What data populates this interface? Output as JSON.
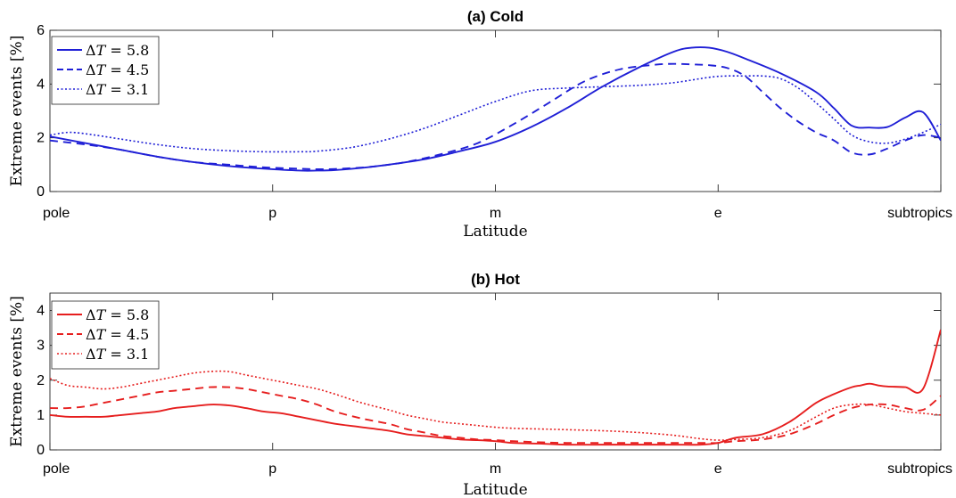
{
  "chart_data": [
    {
      "type": "line",
      "title": "(a) Cold",
      "xlabel": "Latitude",
      "ylabel": "Extreme events [%]",
      "xlim": [
        0,
        100
      ],
      "ylim": [
        0,
        6
      ],
      "yticks": [
        0,
        2,
        4,
        6
      ],
      "xticks": [
        {
          "x": 0,
          "label": "pole"
        },
        {
          "x": 25,
          "label": "p"
        },
        {
          "x": 50,
          "label": "m"
        },
        {
          "x": 75,
          "label": "e"
        },
        {
          "x": 100,
          "label": "subtropics"
        }
      ],
      "color": "#1f1fd6",
      "legend_position": "top-left",
      "series": [
        {
          "name": "ΔT = 5.8",
          "style": "solid",
          "x": [
            0,
            4,
            8,
            12,
            16,
            20,
            24,
            28,
            30,
            32,
            35,
            38,
            42,
            46,
            50,
            54,
            58,
            62,
            66,
            70,
            72,
            74,
            76,
            78,
            82,
            86,
            88,
            90,
            92,
            94,
            96,
            98,
            100
          ],
          "y": [
            2.05,
            1.8,
            1.55,
            1.3,
            1.1,
            0.95,
            0.85,
            0.78,
            0.78,
            0.8,
            0.88,
            1.0,
            1.2,
            1.5,
            1.85,
            2.4,
            3.1,
            3.9,
            4.6,
            5.2,
            5.35,
            5.35,
            5.2,
            4.95,
            4.4,
            3.7,
            3.1,
            2.45,
            2.38,
            2.4,
            2.75,
            2.95,
            1.9
          ]
        },
        {
          "name": "ΔT = 4.5",
          "style": "dashed",
          "x": [
            0,
            4,
            8,
            12,
            16,
            20,
            24,
            28,
            30,
            32,
            36,
            40,
            44,
            48,
            52,
            56,
            60,
            64,
            68,
            70,
            72,
            74,
            76,
            78,
            80,
            82,
            84,
            86,
            88,
            90,
            92,
            94,
            96,
            98,
            100
          ],
          "y": [
            1.9,
            1.75,
            1.55,
            1.3,
            1.1,
            1.0,
            0.9,
            0.85,
            0.83,
            0.84,
            0.92,
            1.1,
            1.4,
            1.8,
            2.5,
            3.3,
            4.1,
            4.55,
            4.72,
            4.75,
            4.73,
            4.7,
            4.6,
            4.3,
            3.7,
            3.1,
            2.6,
            2.2,
            1.9,
            1.45,
            1.38,
            1.6,
            1.9,
            2.1,
            2.0
          ]
        },
        {
          "name": "ΔT = 3.1",
          "style": "dotted",
          "x": [
            0,
            2,
            4,
            8,
            12,
            16,
            20,
            24,
            28,
            30,
            34,
            38,
            42,
            46,
            50,
            54,
            58,
            62,
            66,
            70,
            74,
            76,
            78,
            80,
            82,
            84,
            86,
            88,
            90,
            92,
            94,
            96,
            98,
            100
          ],
          "y": [
            2.1,
            2.2,
            2.15,
            1.95,
            1.75,
            1.6,
            1.52,
            1.48,
            1.48,
            1.5,
            1.65,
            1.95,
            2.35,
            2.85,
            3.35,
            3.75,
            3.85,
            3.9,
            3.95,
            4.05,
            4.25,
            4.3,
            4.3,
            4.3,
            4.2,
            3.85,
            3.3,
            2.7,
            2.1,
            1.85,
            1.8,
            1.95,
            2.2,
            2.5
          ]
        }
      ]
    },
    {
      "type": "line",
      "title": "(b) Hot",
      "xlabel": "Latitude",
      "ylabel": "Extreme events [%]",
      "xlim": [
        0,
        100
      ],
      "ylim": [
        0,
        4.5
      ],
      "yticks": [
        0,
        1,
        2,
        3,
        4
      ],
      "xticks": [
        {
          "x": 0,
          "label": "pole"
        },
        {
          "x": 25,
          "label": "p"
        },
        {
          "x": 50,
          "label": "m"
        },
        {
          "x": 75,
          "label": "e"
        },
        {
          "x": 100,
          "label": "subtropics"
        }
      ],
      "color": "#e61e1e",
      "legend_position": "top-left",
      "series": [
        {
          "name": "ΔT = 5.8",
          "style": "solid",
          "x": [
            0,
            2,
            4,
            6,
            8,
            10,
            12,
            14,
            16,
            18,
            20,
            22,
            24,
            26,
            28,
            30,
            32,
            35,
            38,
            40,
            42,
            44,
            46,
            48,
            50,
            52,
            55,
            58,
            62,
            66,
            70,
            73,
            75,
            77,
            80,
            83,
            86,
            88,
            90,
            91,
            92,
            93,
            94,
            96,
            98,
            100
          ],
          "y": [
            1.0,
            0.95,
            0.95,
            0.95,
            1.0,
            1.05,
            1.1,
            1.2,
            1.25,
            1.3,
            1.28,
            1.2,
            1.1,
            1.05,
            0.95,
            0.85,
            0.75,
            0.65,
            0.55,
            0.45,
            0.4,
            0.35,
            0.3,
            0.28,
            0.25,
            0.2,
            0.18,
            0.15,
            0.15,
            0.15,
            0.15,
            0.15,
            0.2,
            0.35,
            0.45,
            0.8,
            1.35,
            1.6,
            1.8,
            1.85,
            1.9,
            1.85,
            1.82,
            1.8,
            1.75,
            3.45
          ]
        },
        {
          "name": "ΔT = 4.5",
          "style": "dashed",
          "x": [
            0,
            2,
            4,
            6,
            8,
            10,
            12,
            14,
            16,
            18,
            20,
            22,
            24,
            26,
            28,
            30,
            32,
            35,
            38,
            40,
            42,
            44,
            46,
            48,
            50,
            52,
            55,
            58,
            62,
            66,
            70,
            73,
            75,
            77,
            80,
            83,
            86,
            88,
            90,
            92,
            94,
            96,
            98,
            100
          ],
          "y": [
            1.2,
            1.2,
            1.25,
            1.35,
            1.45,
            1.55,
            1.65,
            1.7,
            1.75,
            1.8,
            1.8,
            1.75,
            1.65,
            1.55,
            1.45,
            1.3,
            1.1,
            0.9,
            0.75,
            0.6,
            0.5,
            0.4,
            0.35,
            0.3,
            0.28,
            0.25,
            0.22,
            0.2,
            0.2,
            0.2,
            0.2,
            0.2,
            0.2,
            0.25,
            0.3,
            0.45,
            0.75,
            1.0,
            1.2,
            1.3,
            1.3,
            1.2,
            1.15,
            1.55
          ]
        },
        {
          "name": "ΔT = 3.1",
          "style": "dotted",
          "x": [
            0,
            2,
            4,
            6,
            8,
            10,
            12,
            14,
            16,
            18,
            20,
            22,
            24,
            26,
            28,
            30,
            32,
            35,
            38,
            40,
            42,
            44,
            46,
            48,
            50,
            52,
            55,
            58,
            62,
            66,
            70,
            73,
            75,
            77,
            80,
            83,
            86,
            88,
            90,
            92,
            94,
            96,
            98,
            100
          ],
          "y": [
            2.05,
            1.85,
            1.8,
            1.75,
            1.8,
            1.9,
            2.0,
            2.1,
            2.2,
            2.25,
            2.25,
            2.15,
            2.05,
            1.95,
            1.85,
            1.75,
            1.6,
            1.35,
            1.15,
            1.0,
            0.9,
            0.8,
            0.75,
            0.7,
            0.65,
            0.62,
            0.6,
            0.58,
            0.55,
            0.5,
            0.42,
            0.32,
            0.28,
            0.3,
            0.35,
            0.55,
            0.95,
            1.2,
            1.3,
            1.3,
            1.2,
            1.1,
            1.05,
            1.0
          ]
        }
      ]
    }
  ]
}
